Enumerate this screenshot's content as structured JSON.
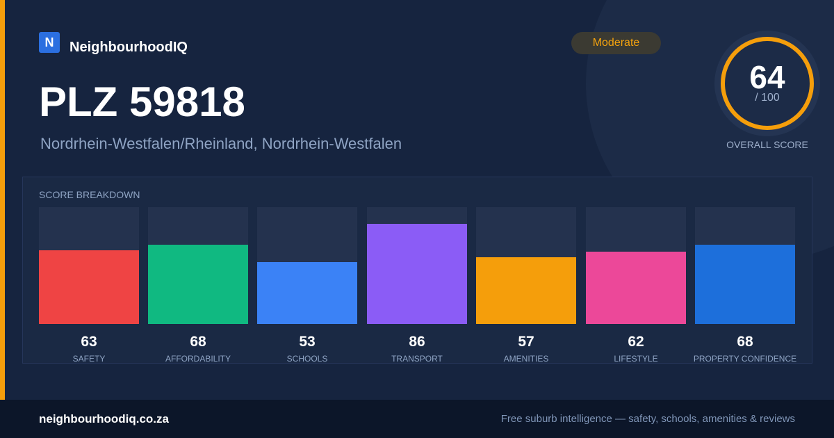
{
  "brand": {
    "logo_letter": "N",
    "name": "NeighbourhoodIQ"
  },
  "badge": {
    "label": "Moderate",
    "color": "#f5a30e"
  },
  "header": {
    "title": "PLZ 59818",
    "subtitle": "Nordrhein-Westfalen/Rheinland, Nordrhein-Westfalen"
  },
  "overall": {
    "score": "64",
    "max_label": "/ 100",
    "label": "OVERALL SCORE",
    "fraction": 0.64,
    "ring_color": "#f59e0b"
  },
  "breakdown": {
    "title": "SCORE BREAKDOWN",
    "items": [
      {
        "value": "63",
        "label": "SAFETY",
        "color": "#ef4444"
      },
      {
        "value": "68",
        "label": "AFFORDABILITY",
        "color": "#10b981"
      },
      {
        "value": "53",
        "label": "SCHOOLS",
        "color": "#3b82f6"
      },
      {
        "value": "86",
        "label": "TRANSPORT",
        "color": "#8b5cf6"
      },
      {
        "value": "57",
        "label": "AMENITIES",
        "color": "#f59e0b"
      },
      {
        "value": "62",
        "label": "LIFESTYLE",
        "color": "#ec4899"
      },
      {
        "value": "68",
        "label": "PROPERTY CONFIDENCE",
        "color": "#1d6fdb"
      }
    ]
  },
  "footer": {
    "url": "neighbourhoodiq.co.za",
    "tagline": "Free suburb intelligence — safety, schools, amenities & reviews"
  }
}
